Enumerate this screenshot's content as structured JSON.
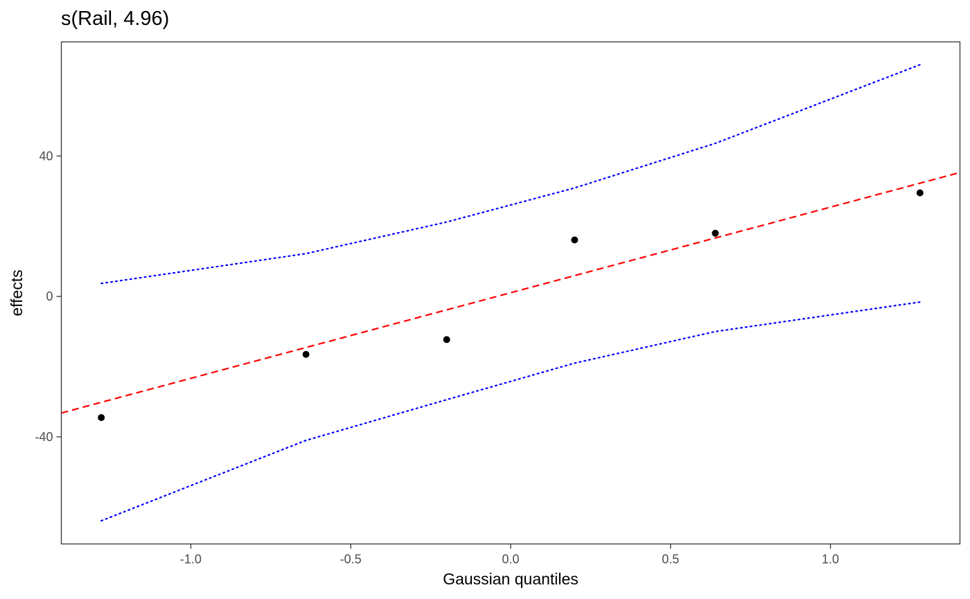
{
  "chart_data": {
    "type": "scatter",
    "title": "s(Rail, 4.96)",
    "xlabel": "Gaussian quantiles",
    "ylabel": "effects",
    "xlim": [
      -1.405,
      1.405
    ],
    "ylim": [
      -70.5,
      72.5
    ],
    "grid": false,
    "x_ticks": [
      {
        "value": -1.0,
        "label": "-1.0"
      },
      {
        "value": -0.5,
        "label": "-0.5"
      },
      {
        "value": 0.0,
        "label": "0.0"
      },
      {
        "value": 0.5,
        "label": "0.5"
      },
      {
        "value": 1.0,
        "label": "1.0"
      }
    ],
    "y_ticks": [
      {
        "value": -40,
        "label": "-40"
      },
      {
        "value": 0,
        "label": "0"
      },
      {
        "value": 40,
        "label": "40"
      }
    ],
    "points": {
      "x": [
        -1.28,
        -0.64,
        -0.2,
        0.2,
        0.64,
        1.28
      ],
      "y": [
        -34.5,
        -16.5,
        -12.3,
        16.1,
        18.0,
        29.5
      ],
      "color": "#000000"
    },
    "reference_line": {
      "style": "dashed",
      "color": "#ff0000",
      "x": [
        -1.405,
        1.405
      ],
      "y": [
        -33.2,
        35.3
      ]
    },
    "confidence_bands": {
      "style": "dotted",
      "color": "#0000ff",
      "x": [
        -1.28,
        -0.64,
        -0.2,
        0.2,
        0.64,
        1.28
      ],
      "upper": [
        3.7,
        12.2,
        21.2,
        30.9,
        43.6,
        66.0
      ],
      "lower": [
        -63.9,
        -41.0,
        -29.4,
        -19.0,
        -10.0,
        -1.6
      ]
    }
  }
}
